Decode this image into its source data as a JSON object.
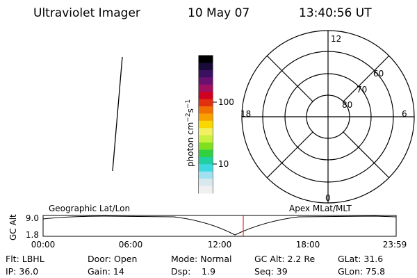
{
  "header": {
    "title": "Ultraviolet Imager",
    "date": "10 May 07",
    "time": "13:40:56 UT"
  },
  "colorbar": {
    "unit": [
      "photon cm",
      "−2",
      "s",
      "−1"
    ],
    "ticks": [
      "100",
      "10"
    ]
  },
  "polar": {
    "mlt_labels": [
      "12",
      "6",
      "0",
      "18"
    ],
    "mlat_labels": [
      "60",
      "70",
      "80"
    ]
  },
  "altitude_plot": {
    "y_label": "GC Alt",
    "y_ticks": [
      "9.0",
      "1.8"
    ],
    "left_title": "Geographic Lat/Lon",
    "right_title": "Apex MLat/MLT",
    "x_ticks": [
      "00:00",
      "06:00",
      "12:00",
      "18:00",
      "23:59"
    ]
  },
  "footer": {
    "rows": [
      [
        "Flt: LBHL",
        "Door: Open",
        "Mode: Normal",
        "GC Alt: 2.2 Re",
        "GLat: 31.6"
      ],
      [
        "IP: 36.0",
        "Gain: 14",
        "Dsp:    1.9",
        "Seq: 39",
        "GLon: 75.8"
      ]
    ]
  }
}
